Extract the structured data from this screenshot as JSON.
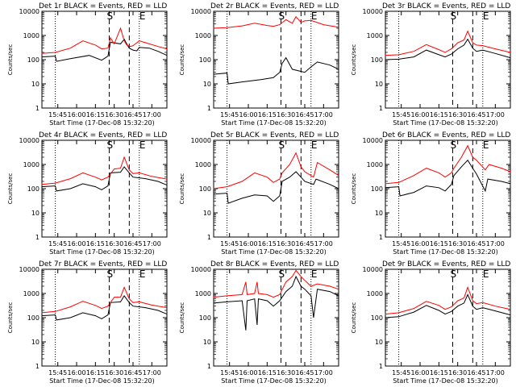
{
  "chart_data": [
    {
      "type": "line",
      "title": "Det 1r BLACK = Events, RED = LLD",
      "xlabel": "Start Time (17-Dec-08 15:32:20)",
      "ylabel": "Counts/sec",
      "x_ticks": [
        "15:45",
        "16:00",
        "16:15",
        "16:30",
        "16:45",
        "17:00"
      ],
      "y_ticks": [
        "1",
        "10",
        "100",
        "1000",
        "10000"
      ],
      "y_scale": "log",
      "ylim": [
        1,
        10000
      ],
      "markers": [
        {
          "label": "S",
          "time": "16:26"
        },
        {
          "label": "E",
          "time": "16:52"
        }
      ],
      "series": [
        {
          "name": "Events",
          "color": "#000000",
          "x": [
            "15:32",
            "15:43",
            "15:44",
            "15:55",
            "16:10",
            "16:20",
            "16:25",
            "16:27",
            "16:35",
            "16:38",
            "16:40",
            "16:42",
            "16:45",
            "16:48",
            "16:50",
            "16:58",
            "17:05",
            "17:12"
          ],
          "y": [
            130,
            140,
            85,
            110,
            150,
            95,
            140,
            520,
            450,
            700,
            450,
            300,
            250,
            230,
            320,
            300,
            220,
            150
          ]
        },
        {
          "name": "LLD",
          "color": "#ff0000",
          "x": [
            "15:32",
            "15:43",
            "15:55",
            "16:05",
            "16:15",
            "16:20",
            "16:25",
            "16:27",
            "16:30",
            "16:35",
            "16:38",
            "16:40",
            "16:43",
            "16:45",
            "16:50",
            "16:55",
            "17:05",
            "17:12"
          ],
          "y": [
            180,
            200,
            300,
            600,
            400,
            280,
            300,
            800,
            450,
            2000,
            600,
            400,
            350,
            380,
            600,
            500,
            350,
            280
          ]
        }
      ]
    },
    {
      "type": "line",
      "title": "Det 2r BLACK = Events, RED = LLD",
      "xlabel": "Start Time (17-Dec-08 15:32:20)",
      "ylabel": "Counts/sec",
      "x_ticks": [
        "15:45",
        "16:00",
        "16:15",
        "16:30",
        "16:45",
        "17:00"
      ],
      "y_ticks": [
        "1",
        "10",
        "100",
        "1000",
        "10000"
      ],
      "y_scale": "log",
      "ylim": [
        1,
        10000
      ],
      "markers": [
        {
          "label": "S",
          "time": "16:26"
        },
        {
          "label": "E",
          "time": "16:52"
        }
      ],
      "series": [
        {
          "name": "Events",
          "color": "#000000",
          "x": [
            "15:32",
            "15:43",
            "15:44",
            "15:55",
            "16:10",
            "16:20",
            "16:25",
            "16:27",
            "16:30",
            "16:35",
            "16:45",
            "16:50",
            "16:55",
            "17:05",
            "17:12"
          ],
          "y": [
            25,
            28,
            10,
            12,
            15,
            18,
            30,
            70,
            120,
            40,
            30,
            50,
            80,
            60,
            40
          ]
        },
        {
          "name": "LLD",
          "color": "#ff0000",
          "x": [
            "15:32",
            "15:43",
            "15:55",
            "16:05",
            "16:15",
            "16:20",
            "16:25",
            "16:30",
            "16:35",
            "16:38",
            "16:42",
            "16:45",
            "16:50",
            "17:00",
            "17:12"
          ],
          "y": [
            2000,
            2100,
            2500,
            3200,
            2600,
            2400,
            2800,
            4500,
            3200,
            6000,
            3500,
            4000,
            4200,
            2800,
            2200
          ]
        }
      ]
    },
    {
      "type": "line",
      "title": "Det 3r BLACK = Events, RED = LLD",
      "xlabel": "Start Time (17-Dec-08 15:32:20)",
      "ylabel": "Counts/sec",
      "x_ticks": [
        "15:45",
        "16:00",
        "16:15",
        "16:30",
        "16:45",
        "17:00"
      ],
      "y_ticks": [
        "1",
        "10",
        "100",
        "1000",
        "10000"
      ],
      "y_scale": "log",
      "ylim": [
        1,
        10000
      ],
      "markers": [
        {
          "label": "S",
          "time": "16:26"
        },
        {
          "label": "E",
          "time": "16:52"
        }
      ],
      "series": [
        {
          "name": "Events",
          "color": "#000000",
          "x": [
            "15:32",
            "15:43",
            "15:55",
            "16:05",
            "16:15",
            "16:20",
            "16:25",
            "16:30",
            "16:35",
            "16:38",
            "16:42",
            "16:45",
            "16:50",
            "17:00",
            "17:12"
          ],
          "y": [
            100,
            105,
            130,
            250,
            160,
            130,
            170,
            280,
            400,
            700,
            300,
            220,
            250,
            180,
            120
          ]
        },
        {
          "name": "LLD",
          "color": "#ff0000",
          "x": [
            "15:32",
            "15:43",
            "15:55",
            "16:05",
            "16:15",
            "16:20",
            "16:25",
            "16:30",
            "16:35",
            "16:38",
            "16:42",
            "16:45",
            "16:50",
            "17:00",
            "17:12"
          ],
          "y": [
            150,
            160,
            220,
            420,
            260,
            200,
            280,
            500,
            650,
            1500,
            500,
            400,
            380,
            280,
            200
          ]
        }
      ]
    },
    {
      "type": "line",
      "title": "Det 4r BLACK = Events, RED = LLD",
      "xlabel": "Start Time (17-Dec-08 15:32:20)",
      "ylabel": "Counts/sec",
      "x_ticks": [
        "15:45",
        "16:00",
        "16:15",
        "16:30",
        "16:45",
        "17:00"
      ],
      "y_ticks": [
        "1",
        "10",
        "100",
        "1000",
        "10000"
      ],
      "y_scale": "log",
      "ylim": [
        1,
        10000
      ],
      "markers": [
        {
          "label": "S",
          "time": "16:26"
        },
        {
          "label": "E",
          "time": "16:52"
        }
      ],
      "series": [
        {
          "name": "Events",
          "color": "#000000",
          "x": [
            "15:32",
            "15:43",
            "15:44",
            "15:55",
            "16:05",
            "16:15",
            "16:20",
            "16:25",
            "16:27",
            "16:35",
            "16:38",
            "16:42",
            "16:45",
            "16:50",
            "16:55",
            "17:05",
            "17:12"
          ],
          "y": [
            120,
            130,
            80,
            100,
            160,
            120,
            90,
            130,
            450,
            480,
            800,
            450,
            300,
            280,
            260,
            200,
            140
          ]
        },
        {
          "name": "LLD",
          "color": "#ff0000",
          "x": [
            "15:32",
            "15:43",
            "15:55",
            "16:05",
            "16:15",
            "16:20",
            "16:25",
            "16:30",
            "16:35",
            "16:38",
            "16:42",
            "16:45",
            "16:50",
            "17:00",
            "17:12"
          ],
          "y": [
            150,
            170,
            260,
            450,
            300,
            230,
            300,
            650,
            700,
            2000,
            600,
            420,
            450,
            320,
            250
          ]
        }
      ]
    },
    {
      "type": "line",
      "title": "Det 5r BLACK = Events, RED = LLD",
      "xlabel": "Start Time (17-Dec-08 15:32:20)",
      "ylabel": "Counts/sec",
      "x_ticks": [
        "15:45",
        "16:00",
        "16:15",
        "16:30",
        "16:45",
        "17:00"
      ],
      "y_ticks": [
        "1",
        "10",
        "100",
        "1000",
        "10000"
      ],
      "y_scale": "log",
      "ylim": [
        1,
        10000
      ],
      "markers": [
        {
          "label": "S",
          "time": "16:26"
        },
        {
          "label": "E",
          "time": "16:52"
        }
      ],
      "series": [
        {
          "name": "Events",
          "color": "#000000",
          "x": [
            "15:32",
            "15:43",
            "15:44",
            "15:55",
            "16:05",
            "16:15",
            "16:20",
            "16:25",
            "16:27",
            "16:33",
            "16:38",
            "16:42",
            "16:45",
            "16:52",
            "16:54",
            "17:05",
            "17:12"
          ],
          "y": [
            60,
            65,
            25,
            40,
            55,
            50,
            30,
            50,
            200,
            300,
            500,
            300,
            200,
            150,
            250,
            150,
            100
          ]
        },
        {
          "name": "LLD",
          "color": "#ff0000",
          "x": [
            "15:32",
            "15:43",
            "15:55",
            "16:05",
            "16:15",
            "16:20",
            "16:25",
            "16:27",
            "16:33",
            "16:38",
            "16:42",
            "16:45",
            "16:52",
            "16:55",
            "17:05",
            "17:12"
          ],
          "y": [
            100,
            120,
            200,
            450,
            300,
            180,
            250,
            450,
            1000,
            3000,
            800,
            500,
            300,
            1200,
            600,
            350
          ]
        }
      ]
    },
    {
      "type": "line",
      "title": "Det 6r BLACK = Events, RED = LLD",
      "xlabel": "Start Time (17-Dec-08 15:32:20)",
      "ylabel": "Counts/sec",
      "x_ticks": [
        "15:45",
        "16:00",
        "16:15",
        "16:30",
        "16:45",
        "17:00"
      ],
      "y_ticks": [
        "1",
        "10",
        "100",
        "1000",
        "10000"
      ],
      "y_scale": "log",
      "ylim": [
        1,
        10000
      ],
      "markers": [
        {
          "label": "S",
          "time": "16:26"
        },
        {
          "label": "E",
          "time": "16:52"
        }
      ],
      "series": [
        {
          "name": "Events",
          "color": "#000000",
          "x": [
            "15:32",
            "15:43",
            "15:44",
            "15:55",
            "16:05",
            "16:15",
            "16:20",
            "16:25",
            "16:27",
            "16:33",
            "16:38",
            "16:42",
            "16:45",
            "16:52",
            "16:54",
            "17:05",
            "17:12"
          ],
          "y": [
            110,
            120,
            50,
            70,
            130,
            110,
            80,
            150,
            350,
            800,
            1500,
            700,
            400,
            80,
            250,
            200,
            160
          ]
        },
        {
          "name": "LLD",
          "color": "#ff0000",
          "x": [
            "15:32",
            "15:43",
            "15:55",
            "16:05",
            "16:15",
            "16:20",
            "16:25",
            "16:27",
            "16:33",
            "16:38",
            "16:42",
            "16:45",
            "16:52",
            "16:55",
            "17:05",
            "17:12"
          ],
          "y": [
            160,
            180,
            350,
            700,
            450,
            300,
            450,
            700,
            2000,
            6000,
            2000,
            1500,
            600,
            1000,
            700,
            500
          ]
        }
      ]
    },
    {
      "type": "line",
      "title": "Det 7r BLACK = Events, RED = LLD",
      "xlabel": "Start Time (17-Dec-08 15:32:20)",
      "ylabel": "Counts/sec",
      "x_ticks": [
        "15:45",
        "16:00",
        "16:15",
        "16:30",
        "16:45",
        "17:00"
      ],
      "y_ticks": [
        "1",
        "10",
        "100",
        "1000",
        "10000"
      ],
      "y_scale": "log",
      "ylim": [
        1,
        10000
      ],
      "markers": [
        {
          "label": "S",
          "time": "16:26"
        },
        {
          "label": "E",
          "time": "16:52"
        }
      ],
      "series": [
        {
          "name": "Events",
          "color": "#000000",
          "x": [
            "15:32",
            "15:43",
            "15:44",
            "15:55",
            "16:05",
            "16:15",
            "16:20",
            "16:25",
            "16:27",
            "16:35",
            "16:38",
            "16:42",
            "16:45",
            "16:50",
            "16:55",
            "17:05",
            "17:12"
          ],
          "y": [
            120,
            130,
            80,
            100,
            160,
            120,
            90,
            130,
            420,
            450,
            800,
            420,
            300,
            280,
            260,
            200,
            140
          ]
        },
        {
          "name": "LLD",
          "color": "#ff0000",
          "x": [
            "15:32",
            "15:43",
            "15:55",
            "16:05",
            "16:15",
            "16:20",
            "16:25",
            "16:30",
            "16:35",
            "16:38",
            "16:42",
            "16:45",
            "16:50",
            "17:00",
            "17:12"
          ],
          "y": [
            160,
            180,
            280,
            480,
            320,
            240,
            300,
            700,
            700,
            1800,
            600,
            420,
            450,
            330,
            260
          ]
        }
      ]
    },
    {
      "type": "line",
      "title": "Det 8r BLACK = Events, RED = LLD",
      "xlabel": "Start Time (17-Dec-08 15:32:20)",
      "ylabel": "Counts/sec",
      "x_ticks": [
        "15:45",
        "16:00",
        "16:15",
        "16:30",
        "16:45",
        "17:00"
      ],
      "y_ticks": [
        "1",
        "10",
        "100",
        "1000",
        "10000"
      ],
      "y_scale": "log",
      "ylim": [
        1,
        10000
      ],
      "markers": [
        {
          "label": "S",
          "time": "16:26"
        },
        {
          "label": "E",
          "time": "16:52"
        }
      ],
      "series": [
        {
          "name": "Events",
          "color": "#000000",
          "x": [
            "15:32",
            "15:43",
            "15:55",
            "15:58",
            "15:59",
            "16:05",
            "16:07",
            "16:08",
            "16:15",
            "16:20",
            "16:25",
            "16:30",
            "16:35",
            "16:38",
            "16:42",
            "16:45",
            "16:50",
            "16:52",
            "16:55",
            "17:05",
            "17:12"
          ],
          "y": [
            400,
            450,
            500,
            30,
            500,
            600,
            50,
            600,
            500,
            300,
            500,
            1200,
            2000,
            5000,
            2000,
            1500,
            800,
            100,
            1500,
            1200,
            800
          ]
        },
        {
          "name": "LLD",
          "color": "#ff0000",
          "x": [
            "15:32",
            "15:43",
            "15:55",
            "15:58",
            "15:59",
            "16:05",
            "16:07",
            "16:08",
            "16:15",
            "16:20",
            "16:25",
            "16:30",
            "16:35",
            "16:38",
            "16:42",
            "16:45",
            "16:50",
            "16:55",
            "17:05",
            "17:12"
          ],
          "y": [
            700,
            800,
            900,
            3000,
            900,
            1000,
            3000,
            1000,
            900,
            700,
            900,
            3000,
            5000,
            9000,
            5000,
            3500,
            2000,
            2500,
            2000,
            1500
          ]
        }
      ]
    },
    {
      "type": "line",
      "title": "Det 9r BLACK = Events, RED = LLD",
      "xlabel": "Start Time (17-Dec-08 15:32:20)",
      "ylabel": "Counts/sec",
      "x_ticks": [
        "15:45",
        "16:00",
        "16:15",
        "16:30",
        "16:45",
        "17:00"
      ],
      "y_ticks": [
        "1",
        "10",
        "100",
        "1000",
        "10000"
      ],
      "y_scale": "log",
      "ylim": [
        1,
        10000
      ],
      "markers": [
        {
          "label": "S",
          "time": "16:26"
        },
        {
          "label": "E",
          "time": "16:52"
        }
      ],
      "series": [
        {
          "name": "Events",
          "color": "#000000",
          "x": [
            "15:32",
            "15:43",
            "15:55",
            "16:05",
            "16:15",
            "16:20",
            "16:25",
            "16:30",
            "16:35",
            "16:38",
            "16:42",
            "16:45",
            "16:50",
            "17:00",
            "17:12"
          ],
          "y": [
            100,
            110,
            170,
            320,
            200,
            140,
            180,
            300,
            400,
            900,
            300,
            220,
            260,
            190,
            130
          ]
        },
        {
          "name": "LLD",
          "color": "#ff0000",
          "x": [
            "15:32",
            "15:43",
            "15:55",
            "16:05",
            "16:15",
            "16:20",
            "16:25",
            "16:30",
            "16:35",
            "16:38",
            "16:42",
            "16:45",
            "16:50",
            "17:00",
            "17:12"
          ],
          "y": [
            140,
            160,
            240,
            470,
            320,
            220,
            280,
            500,
            650,
            1800,
            500,
            380,
            420,
            300,
            220
          ]
        }
      ]
    }
  ]
}
